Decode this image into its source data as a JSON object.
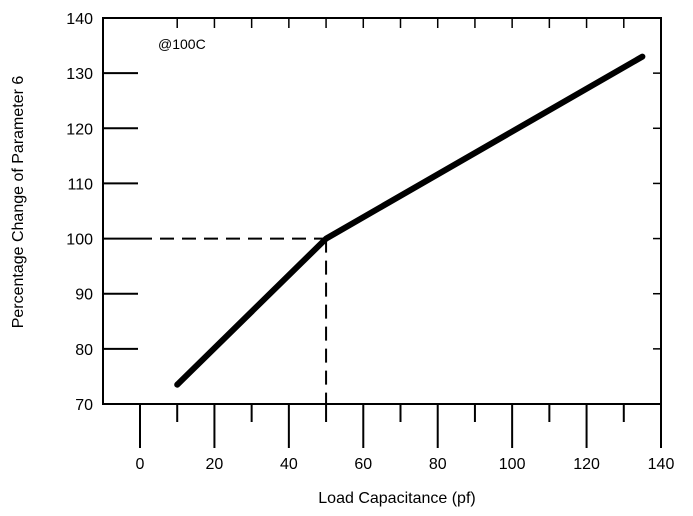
{
  "chart_data": {
    "type": "line",
    "annotation": "@100C",
    "xlabel": "Load Capacitance (pf)",
    "ylabel": "Percentage Change of Parameter 6",
    "xlim": [
      0,
      140
    ],
    "ylim": [
      70,
      140
    ],
    "x_ticks": [
      0,
      20,
      40,
      60,
      80,
      100,
      120,
      140
    ],
    "x_tick_labels": [
      "0",
      "20",
      "40",
      "60",
      "80",
      "100",
      "120",
      "140"
    ],
    "y_ticks": [
      70,
      80,
      90,
      100,
      110,
      120,
      130,
      140
    ],
    "y_tick_labels": [
      "70",
      "80",
      "90",
      "100",
      "110",
      "120",
      "130",
      "140"
    ],
    "grid": false,
    "series": [
      {
        "x": [
          10,
          50,
          135
        ],
        "y": [
          73.5,
          100,
          133
        ]
      }
    ],
    "reference_lines": {
      "x": 50,
      "y": 100,
      "style": "dashed"
    }
  }
}
